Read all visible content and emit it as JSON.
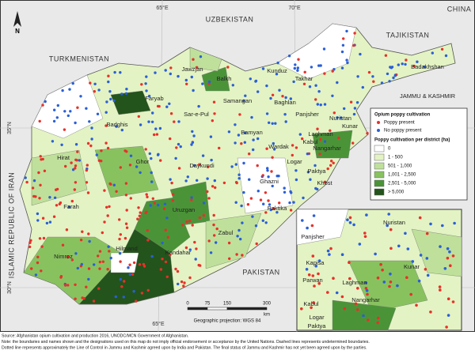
{
  "north": "N",
  "countries": [
    "UZBEKISTAN",
    "TURKMENISTAN",
    "TAJIKISTAN",
    "CHINA",
    "PAKISTAN",
    "ISLAMIC REPUBLIC OF IRAN",
    "JAMMU & KASHMIR",
    "Badakhshan"
  ],
  "coordinates": [
    "65°E",
    "70°E",
    "35°N",
    "30°N",
    "35°N",
    "65°E"
  ],
  "provinces": [
    "Jawzjan",
    "Balkh",
    "Faryab",
    "Samangan",
    "Kunduz",
    "Takhar",
    "Baghlan",
    "Sar-e-Pul",
    "Badghis",
    "Panjsher",
    "Nuristan",
    "Kunar",
    "Laghman",
    "Nangarhar",
    "Kabul",
    "Logar",
    "Paktya",
    "Wardak",
    "Bamyan",
    "Hirat",
    "Ghor",
    "Daykundi",
    "Uruzgan",
    "Ghazni",
    "Paktika",
    "Khost",
    "Farah",
    "Zabul",
    "Nimroz",
    "Hilmand",
    "Kandahar"
  ],
  "inset": {
    "labels": [
      "Panjsher",
      "Nuristan",
      "Kapisa",
      "Kunar",
      "Parwan",
      "Laghman",
      "Kabul",
      "Nangarhar",
      "Logar",
      "Paktya"
    ]
  },
  "legend": {
    "title": "Opium poppy cultivation",
    "present": "Poppy present",
    "absent": "No poppy present",
    "present_color": "#e8302a",
    "absent_color": "#2a5fd8",
    "scale_title": "Poppy cultivation per district (ha)",
    "classes": [
      {
        "label": "0",
        "color": "#ffffff"
      },
      {
        "label": "1 - 500",
        "color": "#e3f3c3"
      },
      {
        "label": "501 - 1,000",
        "color": "#bfe09a"
      },
      {
        "label": "1,001 - 2,500",
        "color": "#88c25f"
      },
      {
        "label": "2,501 - 5,000",
        "color": "#4a9437"
      },
      {
        "label": "> 5,000",
        "color": "#23541b"
      }
    ]
  },
  "scale": {
    "ticks": [
      "0",
      "75",
      "150",
      "300"
    ],
    "unit": "km",
    "projection": "Geographic projection: WGS 84"
  },
  "footer": [
    "Source: Afghanistan opium cultivation and production 2016, UNODC/MCN Government of Afghanistan.",
    "Note: the boundaries and names shown and the designations used on this map do not imply official endorsement or acceptance by the United Nations. Dashed lines represents undetermined boundaries.",
    "Dotted line represents approximately the Line of Control in Jammu and Kashmir agreed upon by India and Pakistan. The final status of Jammu and Kashmir has not yet been agreed upon by the parties."
  ]
}
